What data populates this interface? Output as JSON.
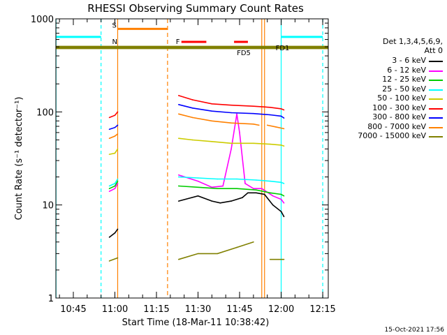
{
  "chart_data": {
    "type": "line",
    "title": "RHESSI Observing Summary Count Rates",
    "xlabel": "Start Time (18-Mar-11 10:38:42)",
    "ylabel": "Count Rate (s⁻¹ detector⁻¹)",
    "yscale": "log",
    "ylim": [
      1,
      1000
    ],
    "y_ticks": [
      "1",
      "10",
      "100",
      "1000"
    ],
    "xlim": [
      "10:38:42",
      "12:17:00"
    ],
    "x_ticks": [
      "10:45",
      "11:00",
      "11:15",
      "11:30",
      "11:45",
      "12:00",
      "12:15"
    ],
    "footer_date": "15-Oct-2021 17:56",
    "legend_header": [
      "Det 1,3,4,5,6,9,",
      "Att 0"
    ],
    "series": [
      {
        "name": "3 - 6 keV",
        "color": "#000000",
        "segments": [
          [
            [
              "10:58",
              4.5
            ],
            [
              "11:00",
              5
            ],
            [
              "11:01",
              5.5
            ]
          ],
          [
            [
              "11:23",
              11
            ],
            [
              "11:30",
              12.5
            ],
            [
              "11:35",
              11
            ],
            [
              "11:38",
              10.5
            ],
            [
              "11:42",
              11
            ],
            [
              "11:46",
              12
            ],
            [
              "11:48",
              13.5
            ],
            [
              "11:51",
              13.5
            ],
            [
              "11:54",
              13
            ],
            [
              "11:57",
              10
            ],
            [
              "12:00",
              8.5
            ],
            [
              "12:01",
              7.5
            ]
          ]
        ]
      },
      {
        "name": "6 - 12 keV",
        "color": "#ff00ff",
        "segments": [
          [
            [
              "10:58",
              14
            ],
            [
              "11:00",
              15
            ],
            [
              "11:01",
              17
            ]
          ],
          [
            [
              "11:23",
              21
            ],
            [
              "11:30",
              18
            ],
            [
              "11:35",
              15.5
            ],
            [
              "11:39",
              16
            ],
            [
              "11:42",
              40
            ],
            [
              "11:44",
              95
            ],
            [
              "11:45",
              60
            ],
            [
              "11:47",
              17
            ],
            [
              "11:50",
              15
            ],
            [
              "11:53",
              15
            ],
            [
              "11:57",
              12.5
            ],
            [
              "12:00",
              11.5
            ],
            [
              "12:01",
              10.5
            ]
          ]
        ]
      },
      {
        "name": "12 - 25 keV",
        "color": "#00cc00",
        "segments": [
          [
            [
              "10:58",
              15
            ],
            [
              "11:00",
              16
            ],
            [
              "11:01",
              18
            ]
          ],
          [
            [
              "11:23",
              16
            ],
            [
              "11:30",
              15.5
            ],
            [
              "11:37",
              15
            ],
            [
              "11:44",
              15
            ],
            [
              "11:51",
              14.5
            ],
            [
              "11:56",
              13.5
            ],
            [
              "12:00",
              13
            ],
            [
              "12:01",
              12.5
            ]
          ]
        ]
      },
      {
        "name": "25 - 50 keV",
        "color": "#00ffff",
        "segments": [
          [
            [
              "10:58",
              16
            ],
            [
              "11:00",
              17
            ],
            [
              "11:01",
              19
            ]
          ],
          [
            [
              "11:23",
              20
            ],
            [
              "11:30",
              19.5
            ],
            [
              "11:37",
              19
            ],
            [
              "11:44",
              19
            ],
            [
              "11:51",
              18.5
            ],
            [
              "11:56",
              18
            ],
            [
              "12:00",
              17.5
            ],
            [
              "12:01",
              17
            ]
          ]
        ]
      },
      {
        "name": "50 - 100 keV",
        "color": "#cccc00",
        "segments": [
          [
            [
              "10:58",
              35
            ],
            [
              "11:00",
              36
            ],
            [
              "11:01",
              40
            ]
          ],
          [
            [
              "11:23",
              52
            ],
            [
              "11:28",
              50
            ],
            [
              "11:35",
              48
            ],
            [
              "11:42",
              46
            ],
            [
              "11:50",
              46
            ],
            [
              "11:56",
              45
            ],
            [
              "12:00",
              44
            ],
            [
              "12:01",
              43
            ]
          ]
        ]
      },
      {
        "name": "100 - 300 keV",
        "color": "#ff0000",
        "segments": [
          [
            [
              "10:58",
              87
            ],
            [
              "11:00",
              92
            ],
            [
              "11:01",
              100
            ]
          ],
          [
            [
              "11:23",
              150
            ],
            [
              "11:28",
              135
            ],
            [
              "11:35",
              122
            ],
            [
              "11:42",
              118
            ],
            [
              "11:50",
              115
            ],
            [
              "11:56",
              112
            ],
            [
              "12:00",
              108
            ],
            [
              "12:01",
              105
            ]
          ]
        ]
      },
      {
        "name": "300 - 800 keV",
        "color": "#0000ff",
        "segments": [
          [
            [
              "10:58",
              65
            ],
            [
              "11:00",
              68
            ],
            [
              "11:01",
              72
            ]
          ],
          [
            [
              "11:23",
              120
            ],
            [
              "11:28",
              110
            ],
            [
              "11:35",
              102
            ],
            [
              "11:42",
              98
            ],
            [
              "11:50",
              96
            ],
            [
              "11:56",
              93
            ],
            [
              "12:00",
              90
            ],
            [
              "12:01",
              86
            ]
          ]
        ]
      },
      {
        "name": "800 - 7000 keV",
        "color": "#ff8000",
        "segments": [
          [
            [
              "10:58",
              52
            ],
            [
              "11:00",
              55
            ],
            [
              "11:01",
              58
            ]
          ],
          [
            [
              "11:23",
              95
            ],
            [
              "11:28",
              87
            ],
            [
              "11:35",
              80
            ],
            [
              "11:42",
              76
            ],
            [
              "11:50",
              74
            ],
            [
              "11:52",
              72
            ]
          ],
          [
            [
              "11:55",
              72
            ],
            [
              "11:58",
              69
            ],
            [
              "12:01",
              66
            ]
          ]
        ]
      },
      {
        "name": "7000 - 15000 keV",
        "color": "#808000",
        "segments": [
          [
            [
              "10:58",
              2.5
            ],
            [
              "11:01",
              2.7
            ]
          ],
          [
            [
              "11:23",
              2.6
            ],
            [
              "11:30",
              3
            ],
            [
              "11:37",
              3
            ],
            [
              "11:44",
              3.5
            ],
            [
              "11:50",
              4
            ]
          ],
          [
            [
              "11:56",
              2.6
            ],
            [
              "12:01",
              2.6
            ]
          ]
        ]
      }
    ],
    "saa_bars": [
      {
        "label": "S",
        "color": "#ff8000",
        "start": "11:01",
        "end": "11:19",
        "y": 780
      },
      {
        "label": "F",
        "color": "#ff0000",
        "segments": [
          [
            "11:24",
            "11:33"
          ],
          [
            "11:43",
            "11:48"
          ]
        ],
        "y": 565
      },
      {
        "label": "N",
        "color": "#00ffff",
        "segments": [
          [
            "10:38:42",
            "10:55"
          ],
          [
            "12:00",
            "12:15"
          ]
        ],
        "y": 640
      },
      {
        "label": "FD5",
        "color": "#808000",
        "start": "10:38:42",
        "end": "12:17",
        "y": 500
      },
      {
        "label": "FD1",
        "color": "#808000",
        "start": "10:38:42",
        "end": "12:17",
        "y": 485
      }
    ]
  }
}
